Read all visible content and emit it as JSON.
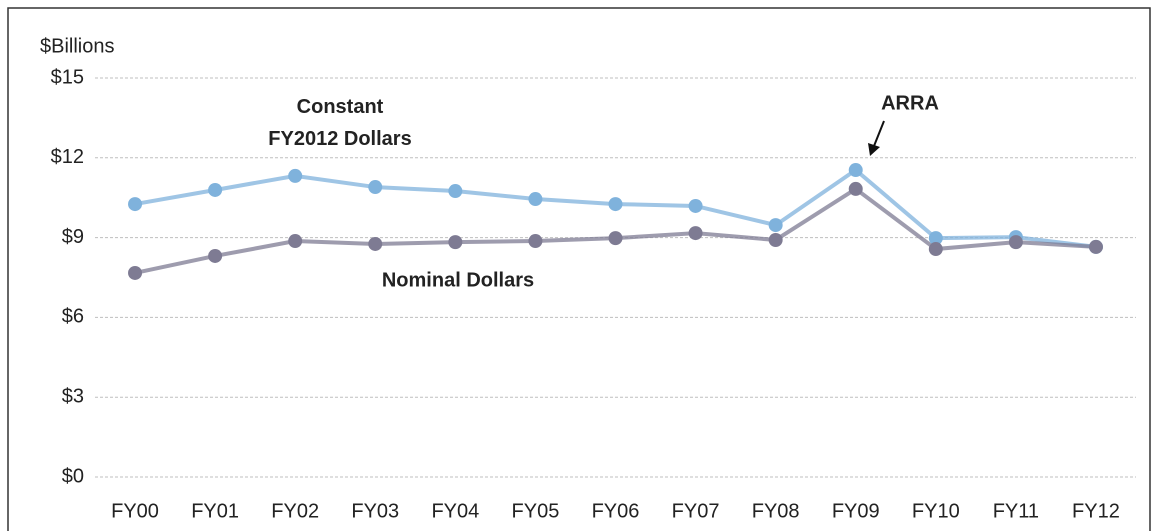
{
  "chart_data": {
    "type": "line",
    "y_axis_label": "$Billions",
    "categories": [
      "FY00",
      "FY01",
      "FY02",
      "FY03",
      "FY04",
      "FY05",
      "FY06",
      "FY07",
      "FY08",
      "FY09",
      "FY10",
      "FY11",
      "FY12"
    ],
    "series": [
      {
        "name": "Constant FY2012 Dollars",
        "color": "#7fb2dc",
        "values": [
          10.26,
          10.79,
          11.32,
          10.9,
          10.75,
          10.45,
          10.26,
          10.19,
          9.47,
          11.54,
          8.98,
          9.02,
          8.65
        ]
      },
      {
        "name": "Nominal Dollars",
        "color": "#7e7b93",
        "values": [
          7.67,
          8.31,
          8.87,
          8.76,
          8.83,
          8.87,
          8.98,
          9.17,
          8.91,
          10.83,
          8.57,
          8.83,
          8.65
        ]
      }
    ],
    "annotations": [
      "ARRA"
    ],
    "ylim": [
      0,
      15
    ],
    "yticks": [
      {
        "value": 0,
        "label": "$0"
      },
      {
        "value": 3,
        "label": "$3"
      },
      {
        "value": 6,
        "label": "$6"
      },
      {
        "value": 9,
        "label": "$9"
      },
      {
        "value": 12,
        "label": "$12"
      },
      {
        "value": 15,
        "label": "$15"
      }
    ],
    "grid": true
  }
}
